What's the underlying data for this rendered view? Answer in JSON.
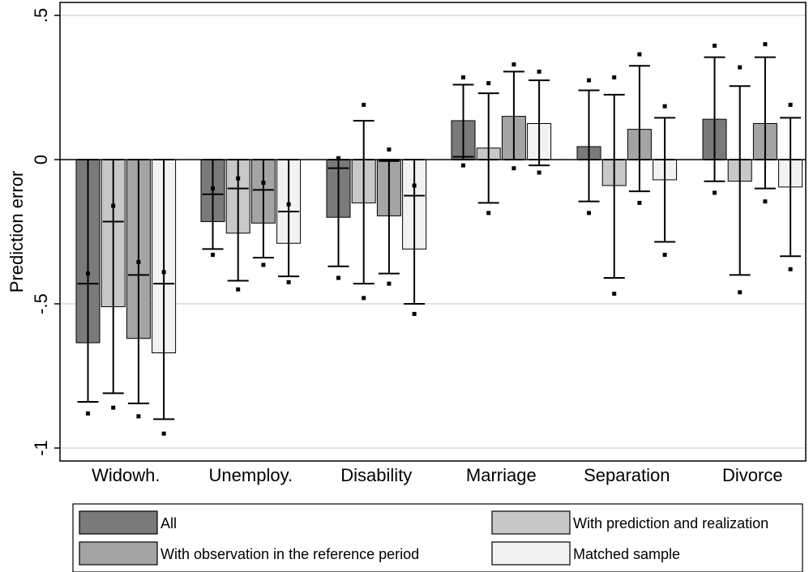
{
  "chart_data": {
    "type": "bar",
    "ylabel": "Prediction error",
    "ylim": [
      -1.05,
      0.5
    ],
    "yticks": [
      0.5,
      0,
      -0.5,
      -1
    ],
    "ytick_labels": [
      ".5",
      "0",
      "-.5",
      "-1"
    ],
    "grid": true,
    "categories": [
      "Widowh.",
      "Unemploy.",
      "Disability",
      "Marriage",
      "Separation",
      "Divorce"
    ],
    "series": [
      {
        "name": "All",
        "color": "#7a7a7a",
        "values": [
          -0.635,
          -0.215,
          -0.2,
          0.135,
          0.045,
          0.14
        ],
        "median": [
          -0.43,
          -0.12,
          -0.03,
          0.01,
          0.0,
          0.0
        ],
        "ci_low": [
          -0.84,
          -0.31,
          -0.37,
          0.0,
          -0.145,
          -0.075
        ],
        "ci_high": [
          0.0,
          0.0,
          0.0,
          0.26,
          0.24,
          0.355
        ],
        "p_low": [
          -0.88,
          -0.33,
          -0.41,
          -0.02,
          -0.185,
          -0.115
        ],
        "p_high": [
          -0.395,
          -0.1,
          0.005,
          0.285,
          0.275,
          0.395
        ]
      },
      {
        "name": "With prediction and realization",
        "color": "#c8c8c8",
        "values": [
          -0.51,
          -0.255,
          -0.15,
          0.04,
          -0.09,
          -0.075
        ],
        "median": [
          -0.215,
          -0.1,
          0.0,
          0.0,
          0.0,
          0.0
        ],
        "ci_low": [
          -0.81,
          -0.42,
          -0.43,
          -0.15,
          -0.41,
          -0.4
        ],
        "ci_high": [
          0.0,
          0.0,
          0.135,
          0.23,
          0.225,
          0.255
        ],
        "p_low": [
          -0.86,
          -0.45,
          -0.48,
          -0.185,
          -0.465,
          -0.46
        ],
        "p_high": [
          -0.16,
          -0.065,
          0.19,
          0.265,
          0.285,
          0.32
        ]
      },
      {
        "name": "With observation in the reference period",
        "color": "#a4a4a4",
        "values": [
          -0.62,
          -0.22,
          -0.195,
          0.15,
          0.105,
          0.125
        ],
        "median": [
          -0.4,
          -0.105,
          -0.005,
          0.0,
          0.0,
          0.0
        ],
        "ci_low": [
          -0.845,
          -0.34,
          -0.395,
          0.0,
          -0.11,
          -0.1
        ],
        "ci_high": [
          0.0,
          0.0,
          0.0,
          0.305,
          0.325,
          0.355
        ],
        "p_low": [
          -0.89,
          -0.365,
          -0.43,
          -0.03,
          -0.15,
          -0.145
        ],
        "p_high": [
          -0.355,
          -0.08,
          0.035,
          0.33,
          0.365,
          0.4
        ]
      },
      {
        "name": "Matched sample",
        "color": "#f2f2f2",
        "values": [
          -0.67,
          -0.29,
          -0.31,
          0.125,
          -0.07,
          -0.095
        ],
        "median": [
          -0.43,
          -0.18,
          -0.125,
          0.0,
          0.0,
          0.0
        ],
        "ci_low": [
          -0.9,
          -0.405,
          -0.5,
          -0.02,
          -0.285,
          -0.335
        ],
        "ci_high": [
          0.0,
          0.0,
          0.0,
          0.275,
          0.145,
          0.145
        ],
        "p_low": [
          -0.95,
          -0.425,
          -0.535,
          -0.045,
          -0.33,
          -0.38
        ],
        "p_high": [
          -0.39,
          -0.155,
          -0.09,
          0.305,
          0.185,
          0.19
        ]
      }
    ],
    "legend": {
      "placement": "bottom",
      "order": [
        0,
        1,
        2,
        3
      ]
    }
  }
}
